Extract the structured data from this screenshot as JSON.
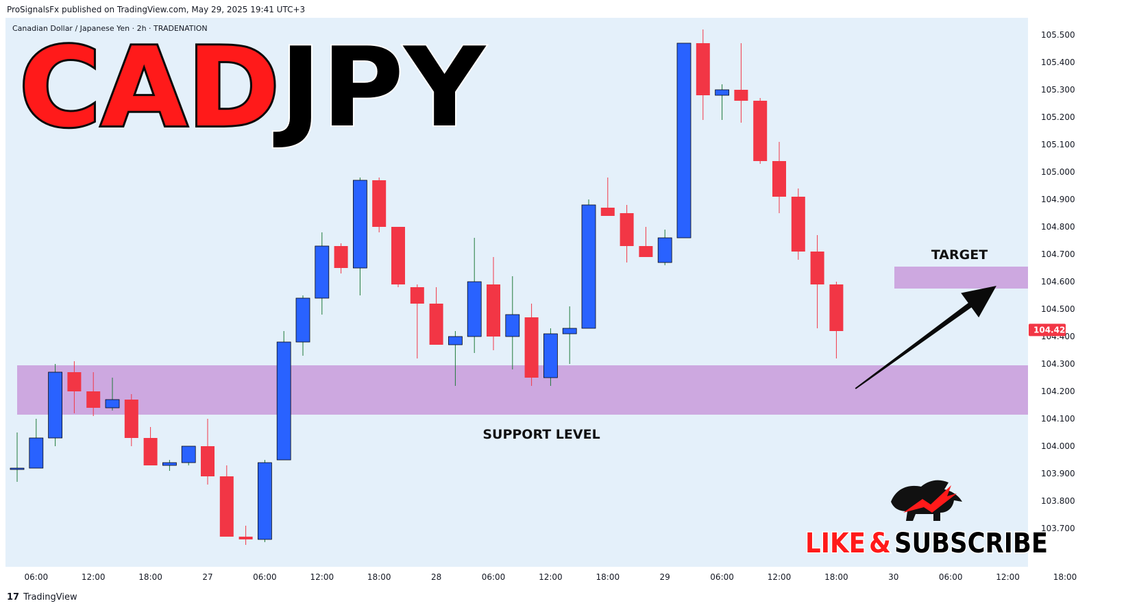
{
  "header": {
    "publisher_line": "ProSignalsFx published on TradingView.com, May 29, 2025 19:41 UTC+3"
  },
  "chart_info": {
    "symbol_line": "Canadian Dollar / Japanese Yen · 2h · TRADENATION"
  },
  "overlay": {
    "title_part1": "CAD",
    "title_part2": "JPY",
    "support_label": "SUPPORT LEVEL",
    "target_label": "TARGET",
    "like_word": "LIKE",
    "amp_word": "&",
    "subscribe_word": "SUBSCRIBE"
  },
  "footer": {
    "brand": "TradingView",
    "brand_mark": "17"
  },
  "colors": {
    "background": "#e4f0fa",
    "up_candle": "#2962ff",
    "down_candle": "#f23645",
    "zone_fill": "#cda8e0",
    "price_tag": "#f23645",
    "title_red": "#ff1a1a",
    "title_black": "#000000"
  },
  "chart_data": {
    "type": "candlestick",
    "symbol": "CADJPY",
    "timeframe": "2h",
    "ylim": [
      103.64,
      105.54
    ],
    "y_ticks": [
      {
        "v": 105.5,
        "label": "105.500"
      },
      {
        "v": 105.4,
        "label": "105.400"
      },
      {
        "v": 105.3,
        "label": "105.300"
      },
      {
        "v": 105.2,
        "label": "105.200"
      },
      {
        "v": 105.1,
        "label": "105.100"
      },
      {
        "v": 105.0,
        "label": "105.000"
      },
      {
        "v": 104.9,
        "label": "104.900"
      },
      {
        "v": 104.8,
        "label": "104.800"
      },
      {
        "v": 104.7,
        "label": "104.700"
      },
      {
        "v": 104.6,
        "label": "104.600"
      },
      {
        "v": 104.5,
        "label": "104.500"
      },
      {
        "v": 104.4,
        "label": "104.400"
      },
      {
        "v": 104.3,
        "label": "104.300"
      },
      {
        "v": 104.2,
        "label": "104.200"
      },
      {
        "v": 104.1,
        "label": "104.100"
      },
      {
        "v": 104.0,
        "label": "104.000"
      },
      {
        "v": 103.9,
        "label": "103.900"
      },
      {
        "v": 103.8,
        "label": "103.800"
      },
      {
        "v": 103.7,
        "label": "103.700"
      }
    ],
    "x_ticks": [
      {
        "i": 1,
        "label": "06:00"
      },
      {
        "i": 4,
        "label": "12:00"
      },
      {
        "i": 7,
        "label": "18:00"
      },
      {
        "i": 10,
        "label": "27"
      },
      {
        "i": 13,
        "label": "06:00"
      },
      {
        "i": 16,
        "label": "12:00"
      },
      {
        "i": 19,
        "label": "18:00"
      },
      {
        "i": 22,
        "label": "28"
      },
      {
        "i": 25,
        "label": "06:00"
      },
      {
        "i": 28,
        "label": "12:00"
      },
      {
        "i": 31,
        "label": "18:00"
      },
      {
        "i": 34,
        "label": "29"
      },
      {
        "i": 37,
        "label": "06:00"
      },
      {
        "i": 40,
        "label": "12:00"
      },
      {
        "i": 43,
        "label": "18:00"
      },
      {
        "i": 46,
        "label": "30"
      },
      {
        "i": 49,
        "label": "06:00"
      },
      {
        "i": 52,
        "label": "12:00"
      },
      {
        "i": 55,
        "label": "18:00"
      }
    ],
    "candles": [
      {
        "o": 103.92,
        "h": 104.05,
        "l": 103.87,
        "c": 103.92
      },
      {
        "o": 103.92,
        "h": 104.1,
        "l": 103.92,
        "c": 104.03
      },
      {
        "o": 104.03,
        "h": 104.3,
        "l": 104.0,
        "c": 104.27
      },
      {
        "o": 104.27,
        "h": 104.31,
        "l": 104.12,
        "c": 104.2
      },
      {
        "o": 104.2,
        "h": 104.27,
        "l": 104.11,
        "c": 104.14
      },
      {
        "o": 104.14,
        "h": 104.25,
        "l": 104.13,
        "c": 104.17
      },
      {
        "o": 104.17,
        "h": 104.19,
        "l": 104.0,
        "c": 104.03
      },
      {
        "o": 104.03,
        "h": 104.07,
        "l": 103.93,
        "c": 103.93
      },
      {
        "o": 103.93,
        "h": 103.95,
        "l": 103.91,
        "c": 103.94
      },
      {
        "o": 103.94,
        "h": 104.0,
        "l": 103.93,
        "c": 104.0
      },
      {
        "o": 104.0,
        "h": 104.1,
        "l": 103.86,
        "c": 103.89
      },
      {
        "o": 103.89,
        "h": 103.93,
        "l": 103.67,
        "c": 103.67
      },
      {
        "o": 103.67,
        "h": 103.71,
        "l": 103.64,
        "c": 103.66
      },
      {
        "o": 103.66,
        "h": 103.95,
        "l": 103.65,
        "c": 103.94
      },
      {
        "o": 103.95,
        "h": 104.42,
        "l": 103.95,
        "c": 104.38
      },
      {
        "o": 104.38,
        "h": 104.55,
        "l": 104.33,
        "c": 104.54
      },
      {
        "o": 104.54,
        "h": 104.78,
        "l": 104.48,
        "c": 104.73
      },
      {
        "o": 104.73,
        "h": 104.74,
        "l": 104.63,
        "c": 104.65
      },
      {
        "o": 104.65,
        "h": 104.98,
        "l": 104.55,
        "c": 104.97
      },
      {
        "o": 104.97,
        "h": 104.98,
        "l": 104.78,
        "c": 104.8
      },
      {
        "o": 104.8,
        "h": 104.8,
        "l": 104.58,
        "c": 104.59
      },
      {
        "o": 104.58,
        "h": 104.59,
        "l": 104.32,
        "c": 104.52
      },
      {
        "o": 104.52,
        "h": 104.58,
        "l": 104.37,
        "c": 104.37
      },
      {
        "o": 104.37,
        "h": 104.42,
        "l": 104.22,
        "c": 104.4
      },
      {
        "o": 104.4,
        "h": 104.76,
        "l": 104.34,
        "c": 104.6
      },
      {
        "o": 104.59,
        "h": 104.69,
        "l": 104.35,
        "c": 104.4
      },
      {
        "o": 104.4,
        "h": 104.62,
        "l": 104.28,
        "c": 104.48
      },
      {
        "o": 104.47,
        "h": 104.52,
        "l": 104.22,
        "c": 104.25
      },
      {
        "o": 104.25,
        "h": 104.43,
        "l": 104.22,
        "c": 104.41
      },
      {
        "o": 104.41,
        "h": 104.51,
        "l": 104.3,
        "c": 104.43
      },
      {
        "o": 104.43,
        "h": 104.9,
        "l": 104.43,
        "c": 104.88
      },
      {
        "o": 104.87,
        "h": 104.98,
        "l": 104.84,
        "c": 104.84
      },
      {
        "o": 104.85,
        "h": 104.88,
        "l": 104.67,
        "c": 104.73
      },
      {
        "o": 104.73,
        "h": 104.8,
        "l": 104.69,
        "c": 104.69
      },
      {
        "o": 104.67,
        "h": 104.79,
        "l": 104.66,
        "c": 104.76
      },
      {
        "o": 104.76,
        "h": 105.47,
        "l": 104.76,
        "c": 105.47
      },
      {
        "o": 105.47,
        "h": 105.52,
        "l": 105.19,
        "c": 105.28
      },
      {
        "o": 105.28,
        "h": 105.32,
        "l": 105.19,
        "c": 105.3
      },
      {
        "o": 105.3,
        "h": 105.47,
        "l": 105.18,
        "c": 105.26
      },
      {
        "o": 105.26,
        "h": 105.27,
        "l": 105.03,
        "c": 105.04
      },
      {
        "o": 105.04,
        "h": 105.11,
        "l": 104.85,
        "c": 104.91
      },
      {
        "o": 104.91,
        "h": 104.94,
        "l": 104.68,
        "c": 104.71
      },
      {
        "o": 104.71,
        "h": 104.77,
        "l": 104.43,
        "c": 104.59
      },
      {
        "o": 104.59,
        "h": 104.6,
        "l": 104.32,
        "c": 104.42
      }
    ],
    "last_price": 104.424,
    "last_price_label": "104.424",
    "support_zone": {
      "low": 104.115,
      "high": 104.295
    },
    "target_zone": {
      "low": 104.575,
      "high": 104.655
    },
    "target_arrow": {
      "from_index": 44.0,
      "from_price": 104.21,
      "to_index": 51.4,
      "to_price": 104.585
    }
  }
}
